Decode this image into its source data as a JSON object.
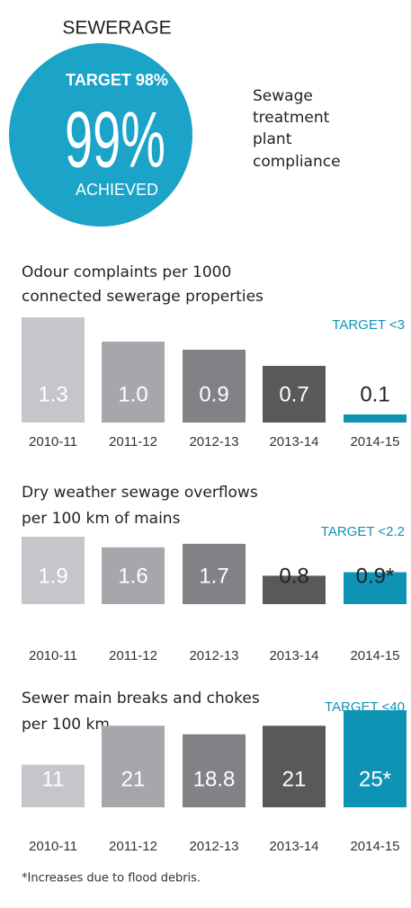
{
  "header": {
    "title": "SEWERAGE",
    "target": "TARGET 98%",
    "value": "99%",
    "status": "ACHIEVED",
    "description": [
      "Sewage",
      "treatment",
      "plant",
      "compliance"
    ]
  },
  "chart_data": [
    {
      "type": "bar",
      "title": [
        "Odour complaints per 1000",
        "connected sewerage properties"
      ],
      "annotation": "TARGET <3",
      "categories": [
        "2010-11",
        "2011-12",
        "2012-13",
        "2013-14",
        "2014-15"
      ],
      "values": [
        1.3,
        1,
        0.9,
        0.7,
        0.1
      ],
      "value_labels": [
        "1.3",
        "1.0",
        "0.9",
        "0.7",
        "0.1"
      ],
      "colors": [
        "#c5c6ca",
        "#a6a7ab",
        "#808285",
        "#58595b",
        "#0e93b5"
      ]
    },
    {
      "type": "bar",
      "title": [
        "Dry weather sewage overflows",
        "per 100 km of mains"
      ],
      "annotation": "TARGET <2.2",
      "categories": [
        "2010-11",
        "2011-12",
        "2012-13",
        "2013-14",
        "2014-15"
      ],
      "values": [
        1.9,
        1.6,
        1.7,
        0.8,
        0.9
      ],
      "value_labels": [
        "1.9",
        "1.6",
        "1.7",
        "0.8",
        "0.9*"
      ],
      "colors": [
        "#c5c6ca",
        "#a6a7ab",
        "#808285",
        "#58595b",
        "#0e93b5"
      ]
    },
    {
      "type": "bar",
      "title": [
        "Sewer main breaks and chokes",
        "per 100 km"
      ],
      "annotation": "TARGET <40",
      "categories": [
        "2010-11",
        "2011-12",
        "2012-13",
        "2013-14",
        "2014-15"
      ],
      "values": [
        11,
        21,
        18.8,
        21,
        25
      ],
      "value_labels": [
        "11",
        "21",
        "18.8",
        "21",
        "25*"
      ],
      "colors": [
        "#c5c6ca",
        "#a6a7ab",
        "#808285",
        "#58595b",
        "#0e93b5"
      ]
    }
  ],
  "footnote": "*Increases due to flood debris."
}
